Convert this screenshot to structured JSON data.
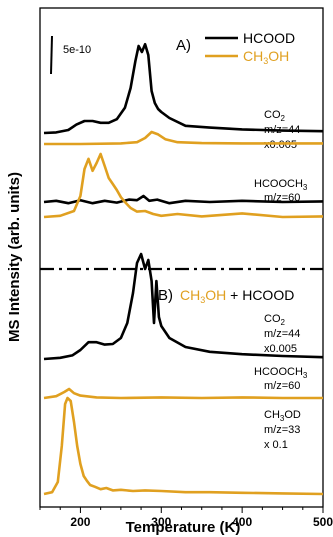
{
  "colors": {
    "black": "#000000",
    "orange": "#e0a020"
  },
  "chart_data": {
    "type": "line",
    "xlabel": "Temperature (K)",
    "ylabel": "MS Intensity (arb. units)",
    "xlim": [
      150,
      500
    ],
    "xticks": [
      200,
      300,
      400,
      500
    ],
    "scale_bar_label": "5e-10",
    "panel_A": {
      "label": "A)",
      "legend": [
        {
          "name": "HCOOD",
          "color": "#000000"
        },
        {
          "name": "CH3OH",
          "color": "#e0a020"
        }
      ],
      "annotations": [
        {
          "lines": [
            "CO2",
            "m/z=44",
            "x0.005"
          ]
        },
        {
          "lines": [
            "HCOOCH3",
            "m/z=60"
          ]
        }
      ],
      "series": [
        {
          "name": "HCOOD",
          "signal": "CO2 m/z=44",
          "color": "#000000",
          "x": [
            155,
            170,
            185,
            195,
            205,
            215,
            225,
            235,
            245,
            255,
            262,
            268,
            272,
            276,
            280,
            284,
            288,
            292,
            296,
            300,
            310,
            330,
            360,
            400,
            450,
            500
          ],
          "y": [
            0,
            0.1,
            0.5,
            1.4,
            2.0,
            2.0,
            1.7,
            1.7,
            2.3,
            4.2,
            7.5,
            12.0,
            14.5,
            13.5,
            14.8,
            13.0,
            7.0,
            5.0,
            4.0,
            3.5,
            2.5,
            1.2,
            0.9,
            0.6,
            0.4,
            0.3
          ]
        },
        {
          "name": "CH3OH",
          "signal": "CO2 m/z=44",
          "color": "#e0a020",
          "x": [
            155,
            200,
            250,
            270,
            280,
            288,
            296,
            305,
            320,
            350,
            400,
            500
          ],
          "y": [
            0,
            0,
            0.1,
            0.3,
            1.0,
            2.0,
            1.6,
            0.8,
            0.3,
            0.15,
            0.1,
            0.1
          ]
        },
        {
          "name": "HCOOD",
          "signal": "HCOOCH3 m/z=60",
          "color": "#000000",
          "x": [
            155,
            170,
            185,
            200,
            215,
            230,
            245,
            260,
            270,
            278,
            285,
            295,
            310,
            330,
            360,
            400,
            450,
            500
          ],
          "y": [
            0,
            0.2,
            -0.2,
            0.3,
            -0.2,
            0.2,
            -0.1,
            0.4,
            0.3,
            1.0,
            0.2,
            0.4,
            -0.2,
            0.2,
            0,
            0.2,
            0,
            0.1
          ]
        },
        {
          "name": "CH3OH",
          "signal": "HCOOCH3 m/z=60",
          "color": "#e0a020",
          "x": [
            155,
            175,
            192,
            200,
            205,
            210,
            215,
            220,
            225,
            230,
            235,
            240,
            245,
            250,
            255,
            262,
            270,
            280,
            290,
            300,
            320,
            350,
            400,
            450,
            500
          ],
          "y": [
            -0.5,
            -0.3,
            0.5,
            3.0,
            7.5,
            9.2,
            7.2,
            8.5,
            10.0,
            8.0,
            6.0,
            5.0,
            4.0,
            2.8,
            2.0,
            1.0,
            0.4,
            0.5,
            0,
            -0.3,
            0,
            -0.4,
            0.1,
            -0.5,
            -0.4
          ]
        }
      ]
    },
    "panel_B": {
      "label": "B)",
      "title_part1": "CH3OH",
      "title_part2": "+ HCOOD",
      "annotations": [
        {
          "lines": [
            "CO2",
            "m/z=44",
            "x0.005"
          ]
        },
        {
          "lines": [
            "HCOOCH3",
            "m/z=60"
          ]
        },
        {
          "lines": [
            "CH3OD",
            "m/z=33",
            "x 0.1"
          ]
        }
      ],
      "series": [
        {
          "name": "CH3OH + HCOOD",
          "signal": "CO2 m/z=44",
          "color": "#000000",
          "x": [
            155,
            175,
            190,
            200,
            210,
            220,
            230,
            240,
            250,
            258,
            265,
            270,
            275,
            280,
            284,
            288,
            291,
            294,
            297,
            300,
            310,
            330,
            360,
            400,
            450,
            500
          ],
          "y": [
            0,
            0.2,
            0.6,
            1.5,
            2.8,
            2.8,
            2.4,
            2.5,
            3.5,
            6.0,
            11.0,
            16.0,
            17.5,
            15.0,
            16.5,
            13.0,
            6.0,
            13.0,
            7.0,
            5.5,
            3.5,
            2.0,
            1.2,
            0.8,
            0.5,
            0.3
          ]
        },
        {
          "name": "CH3OH + HCOOD",
          "signal": "HCOOCH3 m/z=60",
          "color": "#e0a020",
          "x": [
            155,
            170,
            180,
            186,
            192,
            200,
            220,
            250,
            300,
            350,
            400,
            450,
            500
          ],
          "y": [
            0,
            0.3,
            1.0,
            1.5,
            0.8,
            0.4,
            0.1,
            0,
            0.1,
            0,
            0.1,
            0,
            0
          ]
        },
        {
          "name": "CH3OH + HCOOD",
          "signal": "CH3OD m/z=33",
          "color": "#e0a020",
          "x": [
            155,
            165,
            172,
            177,
            181,
            184,
            188,
            192,
            196,
            200,
            204,
            208,
            212,
            218,
            225,
            232,
            240,
            250,
            265,
            280,
            300,
            330,
            360,
            400,
            450,
            500
          ],
          "y": [
            0,
            0.3,
            2.0,
            8.0,
            15.0,
            16.0,
            15.5,
            12.0,
            8.0,
            5.0,
            3.0,
            2.2,
            1.5,
            1.2,
            0.8,
            1.0,
            0.6,
            0.7,
            0.5,
            0.6,
            0.5,
            0.3,
            0.3,
            0.2,
            0.1,
            0
          ]
        }
      ]
    }
  }
}
